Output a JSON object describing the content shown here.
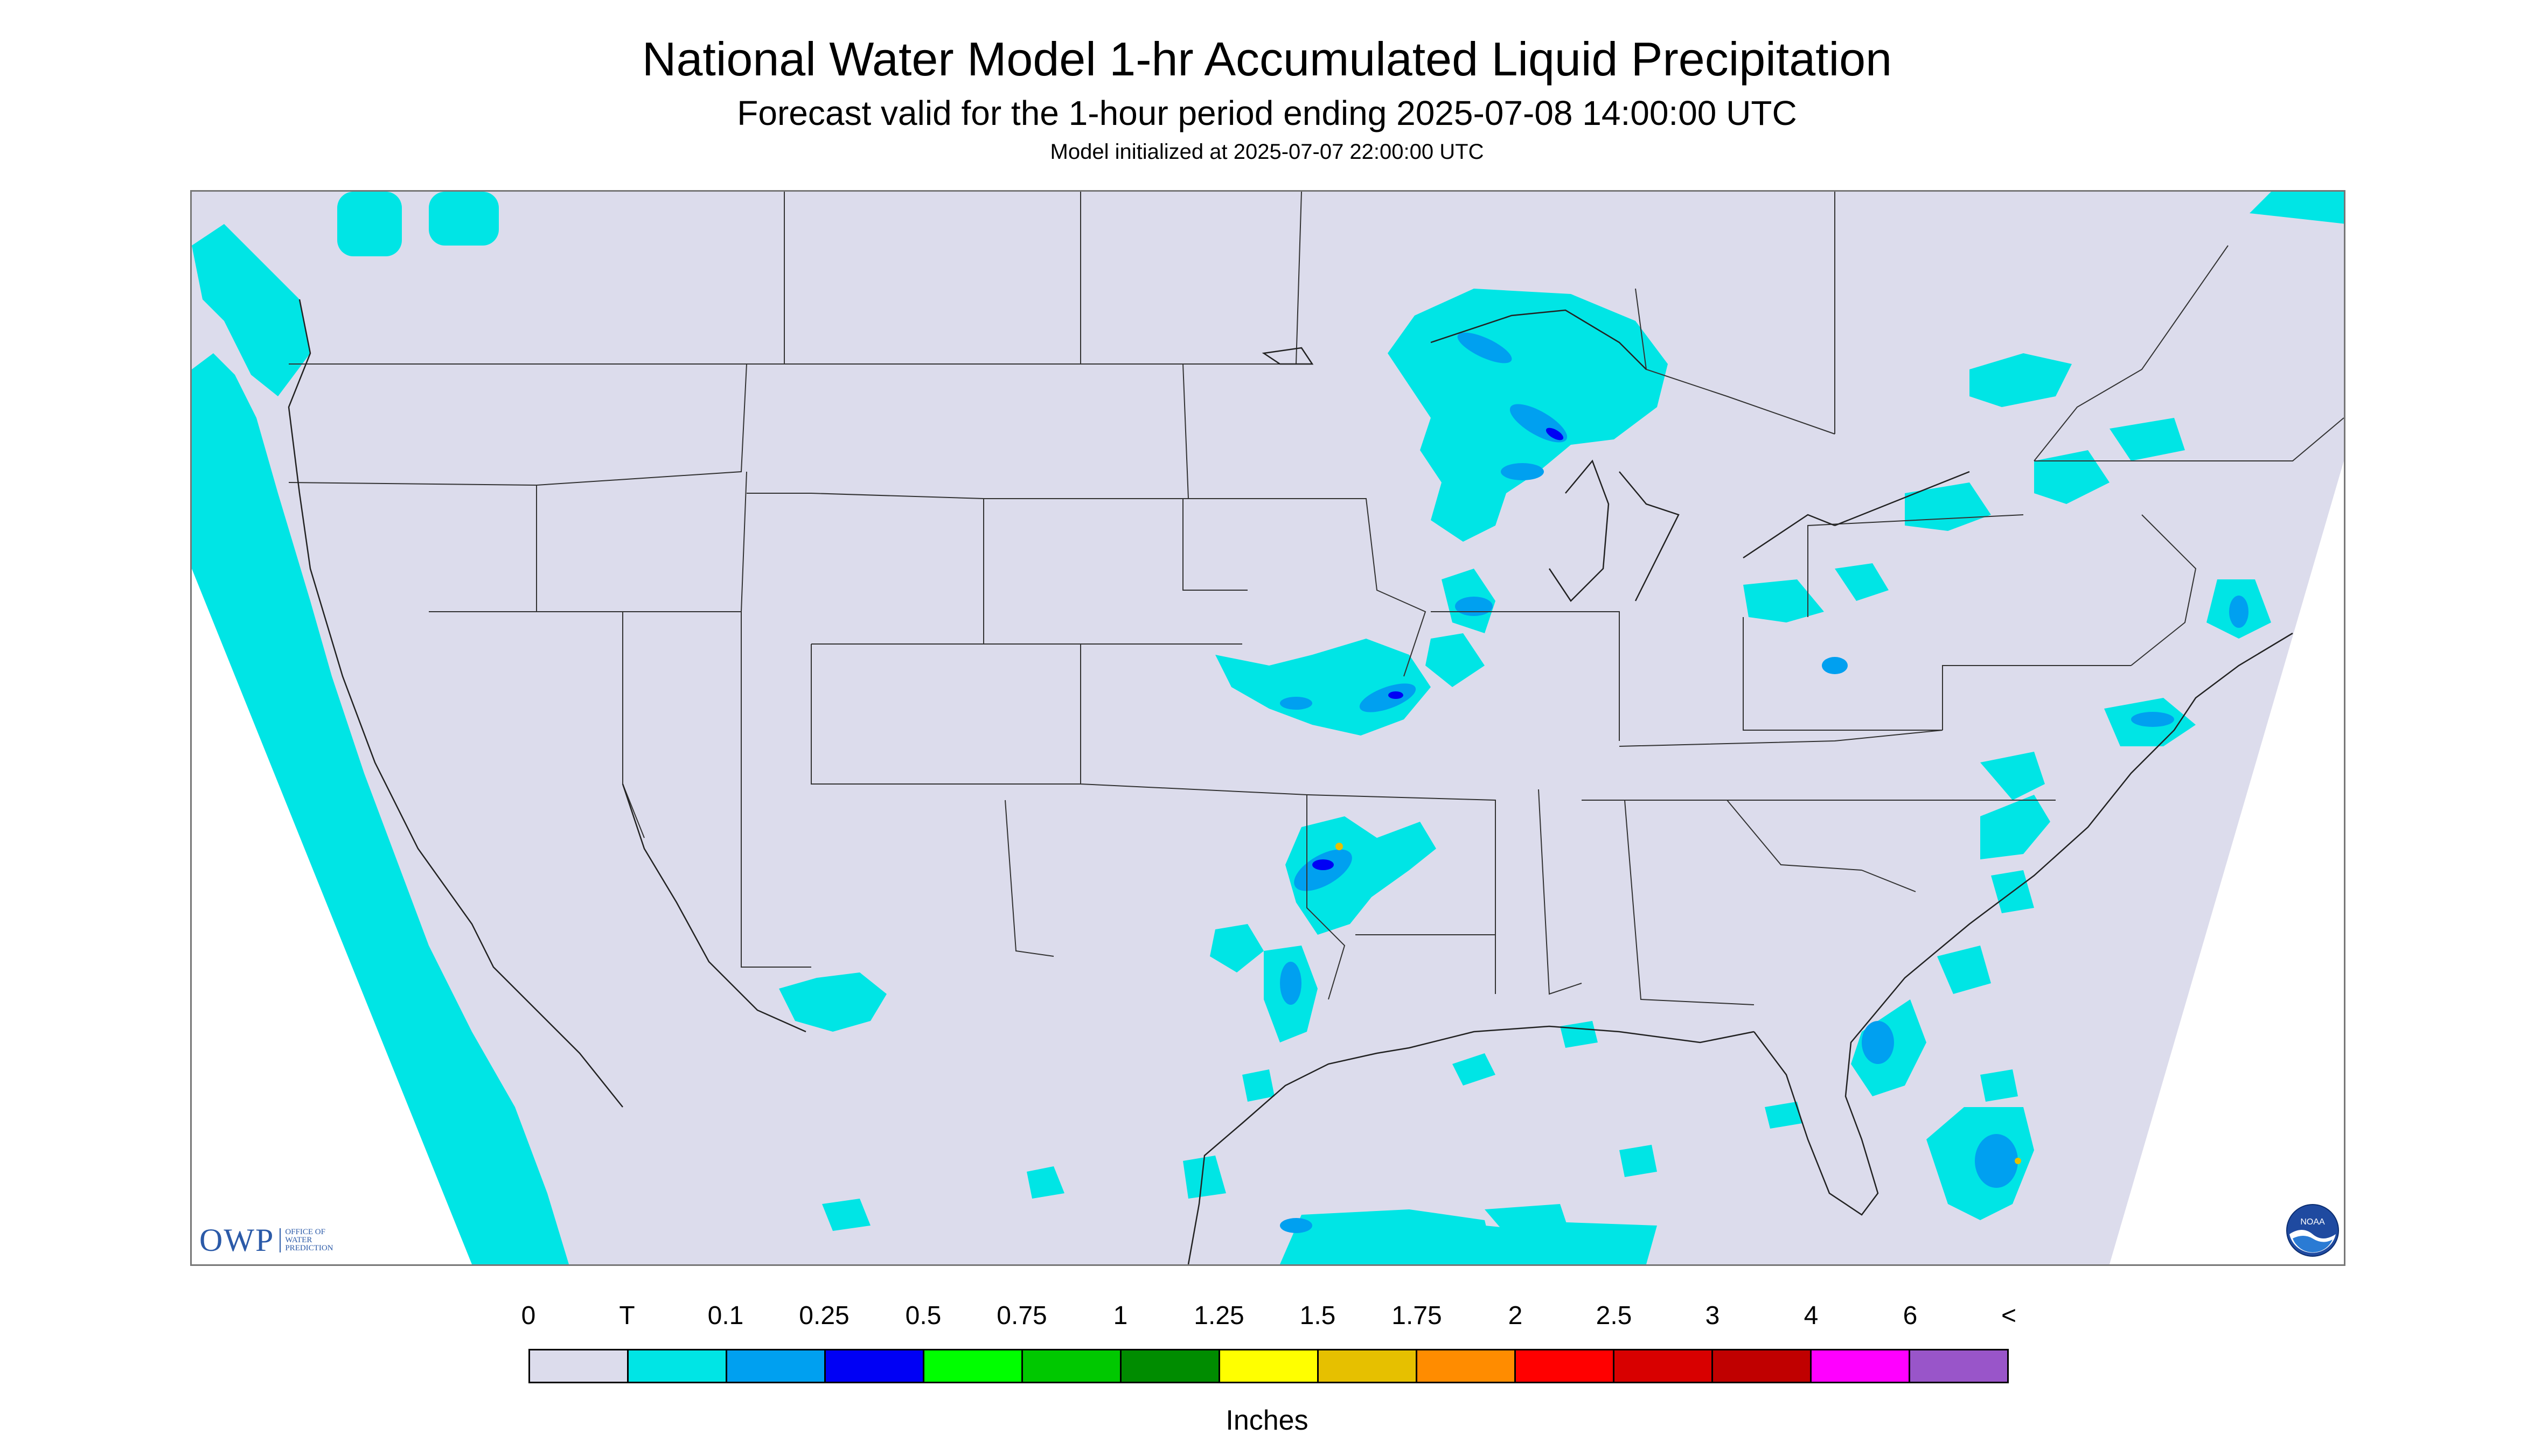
{
  "header": {
    "title": "National Water Model 1-hr Accumulated Liquid Precipitation",
    "subtitle": "Forecast valid for the 1-hour period ending 2025-07-08 14:00:00 UTC",
    "init": "Model initialized at 2025-07-07 22:00:00 UTC"
  },
  "map": {
    "background_color": "#dcdcec",
    "outside_color": "#ffffff",
    "boundary_color": "#333333"
  },
  "logos": {
    "owp_text": "OWP",
    "owp_small_lines": [
      "OFFICE OF",
      "WATER",
      "PREDICTION"
    ],
    "noaa_text": "NOAA"
  },
  "legend": {
    "labels": [
      "0",
      "T",
      "0.1",
      "0.25",
      "0.5",
      "0.75",
      "1",
      "1.25",
      "1.5",
      "1.75",
      "2",
      "2.5",
      "3",
      "4",
      "6",
      "<"
    ],
    "colors": [
      "#dcdcec",
      "#00e5e5",
      "#00a0f0",
      "#0000f5",
      "#00ff00",
      "#00c800",
      "#008c00",
      "#ffff00",
      "#e6c000",
      "#ff8c00",
      "#ff0000",
      "#d80000",
      "#c00000",
      "#ff00ff",
      "#9955c9"
    ],
    "units": "Inches"
  }
}
